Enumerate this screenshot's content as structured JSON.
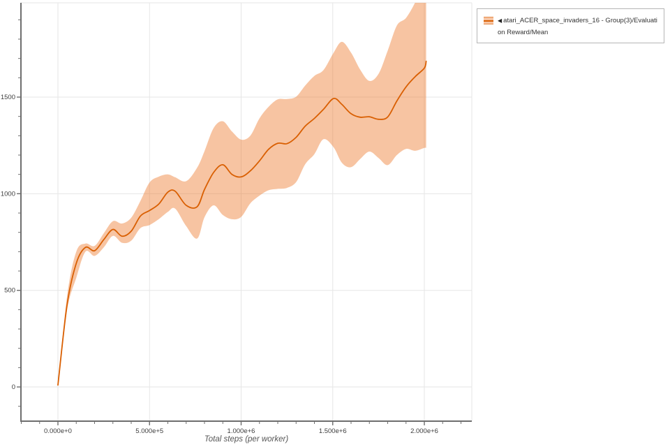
{
  "legend": {
    "collapse_icon": "◀",
    "entries": [
      {
        "lines": [
          "atari_ACER_space_invaders_16 - Group(3)/Evaluati",
          "on Reward/Mean"
        ]
      }
    ]
  },
  "chart_data": {
    "type": "line",
    "title": "",
    "xlabel": "Total steps (per worker)",
    "ylabel": "",
    "grid": true,
    "legend_position": "top-right-outside",
    "xlim": [
      -201900,
      2259000
    ],
    "ylim": [
      -177,
      1988
    ],
    "x_minor_step": 100000,
    "y_minor_step": 100,
    "x_ticks": [
      {
        "v": 0,
        "label": "0.000e+0"
      },
      {
        "v": 500000,
        "label": "5.000e+5"
      },
      {
        "v": 1000000,
        "label": "1.000e+6"
      },
      {
        "v": 1500000,
        "label": "1.500e+6"
      },
      {
        "v": 2000000,
        "label": "2.000e+6"
      }
    ],
    "y_ticks": [
      {
        "v": 0,
        "label": "0"
      },
      {
        "v": 500,
        "label": "500"
      },
      {
        "v": 1000,
        "label": "1000"
      },
      {
        "v": 1500,
        "label": "1500"
      }
    ],
    "series": [
      {
        "name": "atari_ACER_space_invaders_16 - Group(3)/Evaluation Reward/Mean",
        "color": "#d95f02",
        "band_fill": "rgba(237,125,49,0.45)",
        "x": [
          0,
          50000,
          100000,
          150000,
          200000,
          250000,
          300000,
          350000,
          400000,
          450000,
          500000,
          550000,
          600000,
          640000,
          700000,
          760000,
          800000,
          850000,
          900000,
          950000,
          1000000,
          1050000,
          1100000,
          1150000,
          1200000,
          1250000,
          1300000,
          1350000,
          1400000,
          1450000,
          1505000,
          1550000,
          1600000,
          1650000,
          1700000,
          1750000,
          1800000,
          1850000,
          1900000,
          1950000,
          2000000,
          2010000
        ],
        "mean": [
          10,
          425,
          640,
          722,
          705,
          762,
          815,
          780,
          806,
          884,
          913,
          946,
          1008,
          1013,
          940,
          933,
          1022,
          1110,
          1150,
          1100,
          1087,
          1118,
          1170,
          1230,
          1261,
          1259,
          1292,
          1350,
          1390,
          1437,
          1493,
          1462,
          1414,
          1396,
          1398,
          1385,
          1397,
          1480,
          1553,
          1606,
          1650,
          1685
        ],
        "lower": [
          10,
          398,
          565,
          700,
          678,
          722,
          782,
          746,
          757,
          822,
          838,
          868,
          906,
          923,
          832,
          768,
          878,
          940,
          890,
          868,
          880,
          950,
          990,
          1018,
          1025,
          1030,
          1060,
          1153,
          1205,
          1282,
          1240,
          1160,
          1137,
          1180,
          1218,
          1185,
          1148,
          1200,
          1232,
          1222,
          1237,
          1237
        ],
        "upper": [
          10,
          470,
          700,
          742,
          730,
          795,
          858,
          846,
          876,
          962,
          1058,
          1088,
          1100,
          1085,
          1065,
          1135,
          1220,
          1340,
          1375,
          1322,
          1280,
          1300,
          1390,
          1450,
          1488,
          1490,
          1502,
          1560,
          1610,
          1640,
          1730,
          1786,
          1730,
          1642,
          1584,
          1620,
          1740,
          1870,
          1910,
          1990,
          2100,
          2140
        ]
      }
    ]
  }
}
